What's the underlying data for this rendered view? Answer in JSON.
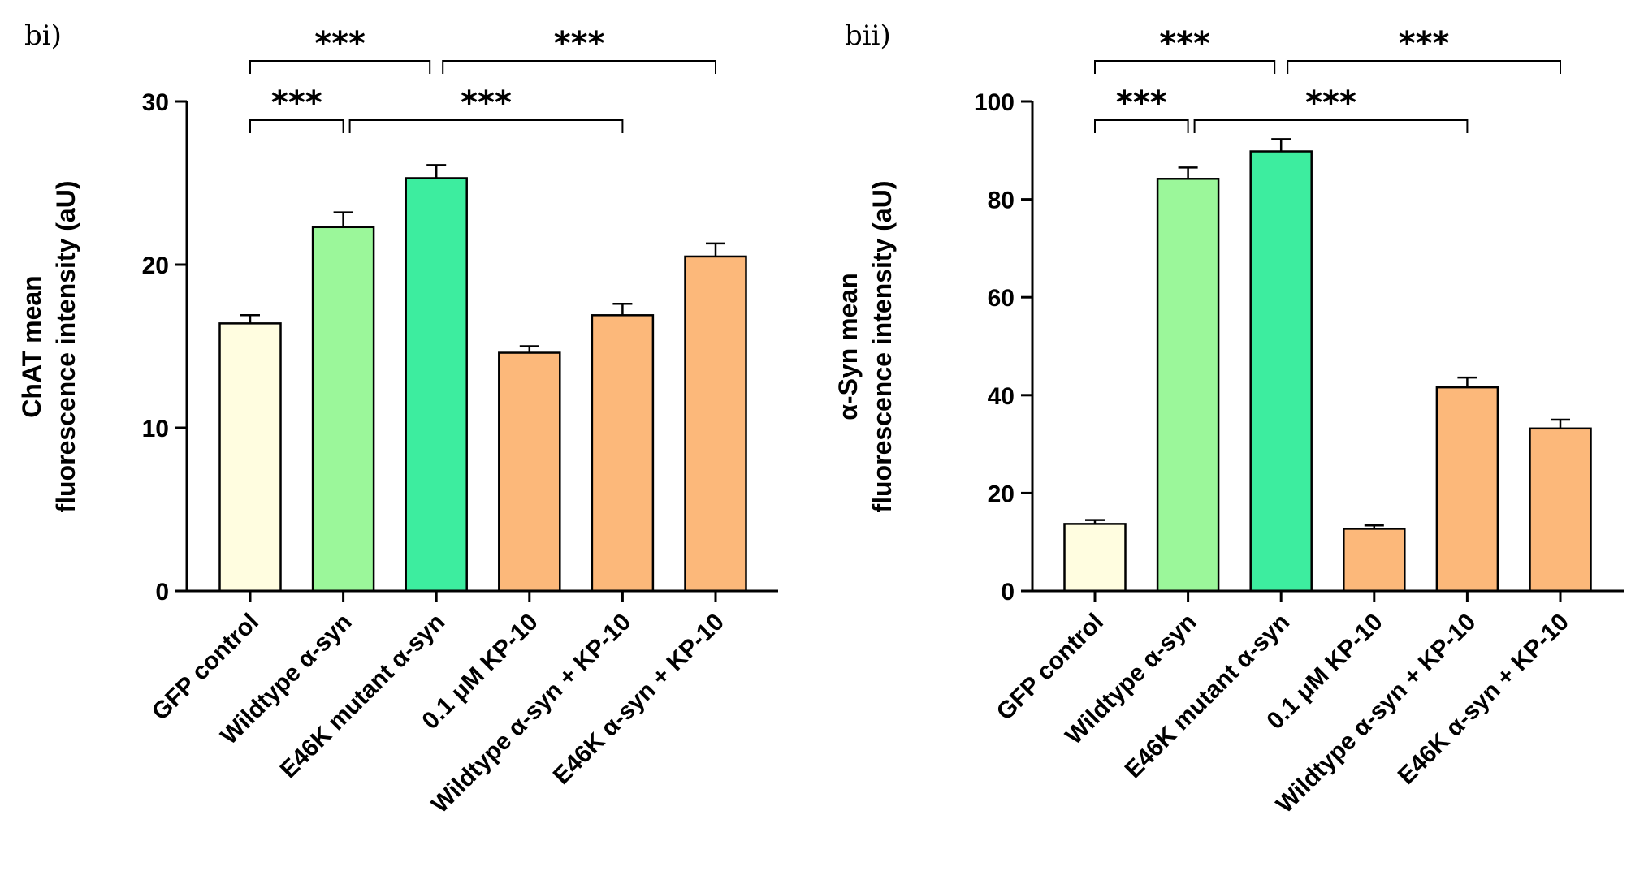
{
  "chart_data": [
    {
      "type": "bar",
      "panel_label": "bi)",
      "ylabel_lines": [
        "ChAT mean",
        "fluorescence intensity (aU)"
      ],
      "categories": [
        "GFP control",
        "Wildtype α-syn",
        "E46K mutant α-syn",
        "0.1 μM KP-10",
        "Wildtype α-syn + KP-10",
        "E46K α-syn + KP-10"
      ],
      "values": [
        16.4,
        22.3,
        25.3,
        14.6,
        16.9,
        20.5
      ],
      "errors": [
        0.5,
        0.9,
        0.8,
        0.4,
        0.7,
        0.8
      ],
      "colors": [
        "#fffde0",
        "#9bf79a",
        "#3ded9f",
        "#fcb87a",
        "#fcb87a",
        "#fcb87a"
      ],
      "ylim": [
        0,
        30
      ],
      "yticks": [
        "0",
        "10",
        "20",
        "30"
      ],
      "significance": [
        {
          "from": 0,
          "to": 2,
          "level": 1,
          "label": "***"
        },
        {
          "from": 2,
          "to": 5,
          "level": 1,
          "label": "***"
        },
        {
          "from": 0,
          "to": 1,
          "level": 0,
          "label": "***"
        },
        {
          "from": 1,
          "to": 4,
          "level": 0,
          "label": "***"
        }
      ]
    },
    {
      "type": "bar",
      "panel_label": "bii)",
      "ylabel_lines": [
        "α-Syn mean",
        "fluorescence intensity (aU)"
      ],
      "categories": [
        "GFP control",
        "Wildtype α-syn",
        "E46K mutant α-syn",
        "0.1 μM KP-10",
        "Wildtype α-syn + KP-10",
        "E46K α-syn + KP-10"
      ],
      "values": [
        13.7,
        84.2,
        89.8,
        12.7,
        41.6,
        33.2
      ],
      "errors": [
        0.8,
        2.3,
        2.5,
        0.7,
        2.0,
        1.8
      ],
      "colors": [
        "#fffde0",
        "#9bf79a",
        "#3ded9f",
        "#fcb87a",
        "#fcb87a",
        "#fcb87a"
      ],
      "ylim": [
        0,
        100
      ],
      "yticks": [
        "0",
        "20",
        "40",
        "60",
        "80",
        "100"
      ],
      "significance": [
        {
          "from": 0,
          "to": 2,
          "level": 1,
          "label": "***"
        },
        {
          "from": 2,
          "to": 5,
          "level": 1,
          "label": "***"
        },
        {
          "from": 0,
          "to": 1,
          "level": 0,
          "label": "***"
        },
        {
          "from": 1,
          "to": 4,
          "level": 0,
          "label": "***"
        }
      ]
    }
  ]
}
